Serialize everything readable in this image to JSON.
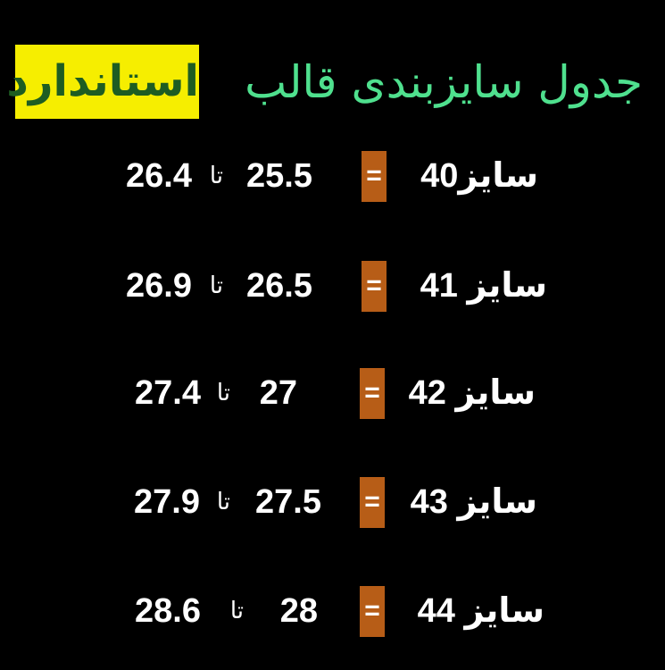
{
  "title": {
    "main": "جدول سایزبندی قالب",
    "highlight": "استاندارد"
  },
  "colors": {
    "title": "#4fe08e",
    "highlight_bg": "#f6ee00",
    "highlight_text": "#1e5d22",
    "equals_box": "#b75d17",
    "text": "#ffffff",
    "background": "#000000"
  },
  "equals_sign": "=",
  "range_word": "تا",
  "rows": [
    {
      "size_label": "سایز40",
      "from": "25.5",
      "to": "26.4"
    },
    {
      "size_label": "سایز 41",
      "from": "26.5",
      "to": "26.9"
    },
    {
      "size_label": "سایز 42",
      "from": "27",
      "to": "27.4"
    },
    {
      "size_label": "سایز 43",
      "from": "27.5",
      "to": "27.9"
    },
    {
      "size_label": "سایز 44",
      "from": "28",
      "to": "28.6"
    }
  ]
}
